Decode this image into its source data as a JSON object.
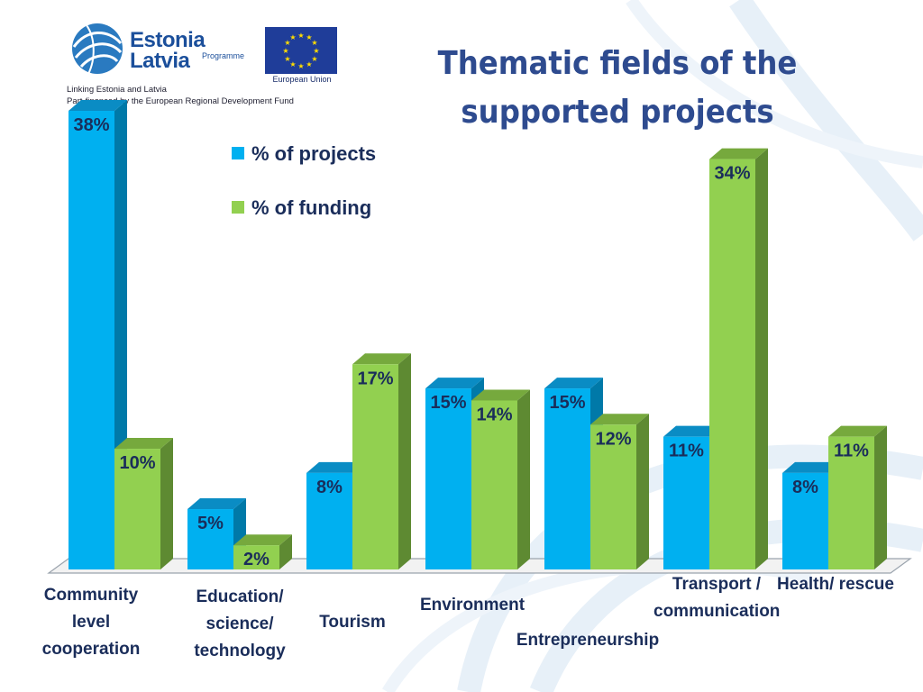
{
  "header": {
    "logo_line1": "Estonia",
    "logo_line2": "Latvia",
    "logo_programme": "Programme",
    "eu_label": "European Union",
    "tagline1": "Linking Estonia and Latvia",
    "tagline2": "Part-financed by the European Regional Development Fund"
  },
  "title_line1": "Thematic fields of the",
  "title_line2": "supported projects",
  "colors": {
    "projects": "#00b0f0",
    "funding": "#92d050",
    "title": "#2e4b8f"
  },
  "chart_data": {
    "type": "bar",
    "categories": [
      "Community level cooperation",
      "Education/ science/ technology",
      "Tourism",
      "Environment",
      "Entrepreneurship",
      "Transport / communication",
      "Health/ rescue"
    ],
    "series": [
      {
        "name": "% of projects",
        "values": [
          38,
          5,
          8,
          15,
          15,
          11,
          8
        ],
        "labels": [
          "38%",
          "5%",
          "8%",
          "15%",
          "15%",
          "11%",
          "8%"
        ]
      },
      {
        "name": "% of funding",
        "values": [
          10,
          2,
          17,
          14,
          12,
          34,
          11
        ],
        "labels": [
          "10%",
          "2%",
          "17%",
          "14%",
          "12%",
          "34%",
          "11%"
        ]
      }
    ],
    "legend_position": "top-left",
    "ylim": [
      0,
      38
    ],
    "grid": false
  }
}
